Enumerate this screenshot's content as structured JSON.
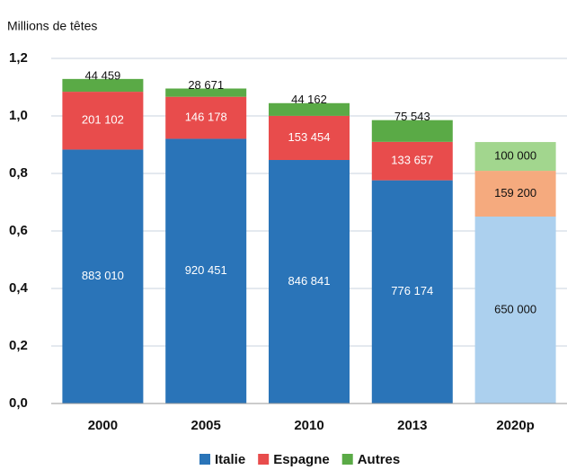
{
  "chart_data": {
    "type": "stacked_bar",
    "y_label": "Millions de têtes",
    "categories": [
      "2000",
      "2005",
      "2010",
      "2013",
      "2020p"
    ],
    "series": [
      {
        "name": "Italie",
        "color": "#2a74b8",
        "colors": [
          "#2a74b8",
          "#2a74b8",
          "#2a74b8",
          "#2a74b8",
          "#acd0ee"
        ],
        "values": [
          0.88301,
          0.920451,
          0.846841,
          0.776174,
          0.65
        ],
        "value_labels": [
          "883 010",
          "920 451",
          "846 841",
          "776 174",
          "650 000"
        ]
      },
      {
        "name": "Espagne",
        "color": "#e84c4c",
        "colors": [
          "#e84c4c",
          "#e84c4c",
          "#e84c4c",
          "#e84c4c",
          "#f5aa7e"
        ],
        "values": [
          0.201102,
          0.146178,
          0.153454,
          0.133657,
          0.1592
        ],
        "value_labels": [
          "201 102",
          "146 178",
          "153 454",
          "133 657",
          "159 200"
        ]
      },
      {
        "name": "Autres",
        "color": "#5aaa46",
        "colors": [
          "#5aaa46",
          "#5aaa46",
          "#5aaa46",
          "#5aaa46",
          "#a2d68e"
        ],
        "values": [
          0.044459,
          0.028671,
          0.044162,
          0.075543,
          0.1
        ],
        "value_labels": [
          "44 459",
          "28 671",
          "44 162",
          "75 543",
          "100 000"
        ]
      }
    ],
    "ylim": [
      0,
      1.2
    ],
    "yticks": [
      {
        "value": 0,
        "label": "0,0"
      },
      {
        "value": 0.2,
        "label": "0,2"
      },
      {
        "value": 0.4,
        "label": "0,4"
      },
      {
        "value": 0.6,
        "label": "0,6"
      },
      {
        "value": 0.8,
        "label": "0,8"
      },
      {
        "value": 1.0,
        "label": "1,0"
      },
      {
        "value": 1.2,
        "label": "1,2"
      }
    ],
    "grid": true,
    "legend": "bottom"
  }
}
